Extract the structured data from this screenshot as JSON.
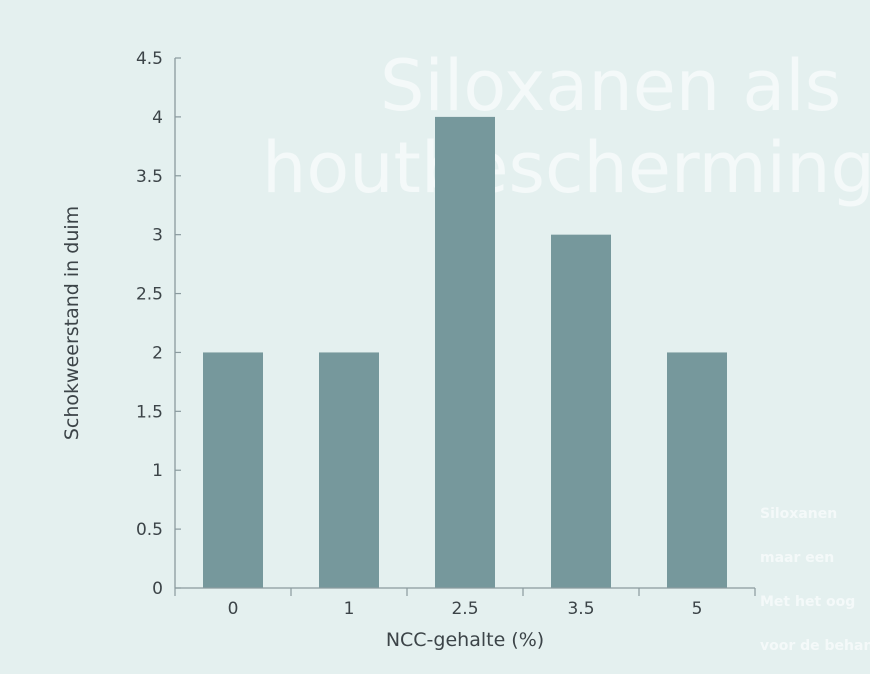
{
  "chart_data": {
    "type": "bar",
    "categories": [
      "0",
      "1",
      "2.5",
      "3.5",
      "5"
    ],
    "values": [
      2,
      2,
      4,
      3,
      2
    ],
    "xlabel": "NCC-gehalte (%)",
    "ylabel": "Schokweerstand in duim",
    "ylim": [
      0,
      4.5
    ],
    "yticks": [
      "0",
      "0.5",
      "1",
      "1.5",
      "2",
      "2.5",
      "3",
      "3.5",
      "4",
      "4.5"
    ],
    "grid": false,
    "legend": "none",
    "bar_color": "#76989c",
    "axis_color": "#8a9a9e"
  },
  "background_text": {
    "line1": "Siloxanen als",
    "line2": "houtbescherming",
    "para": [
      "Siloxanen",
      "maar een",
      "Met het oog",
      "voor de behandeling"
    ]
  },
  "colors": {
    "background": "#e4f0ef",
    "ghost_text": "#f4f9f9"
  }
}
